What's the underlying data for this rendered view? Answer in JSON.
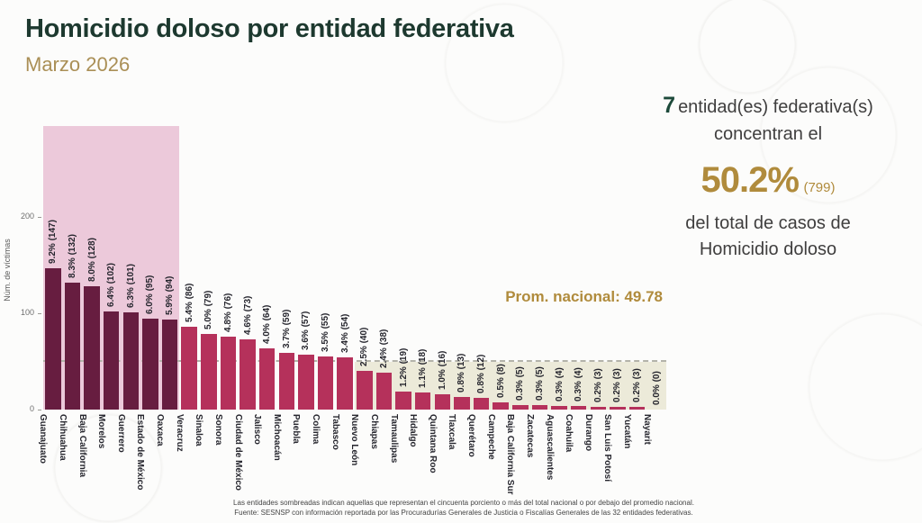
{
  "header": {
    "title": "Homicidio doloso por entidad federativa",
    "subtitle": "Marzo 2026"
  },
  "summary": {
    "count": "7",
    "count_suffix": "entidad(es) federativa(s)",
    "line2": "concentran el",
    "percent": "50.2%",
    "percent_count": "(799)",
    "line4": "del total de casos de",
    "line5": "Homicidio doloso"
  },
  "colors": {
    "bar_dark": "#671d40",
    "bar_light": "#b5315b",
    "region_pink": "#ecc9da",
    "region_beige": "#ecead9",
    "avg_line": "#b3b3aa",
    "accent_green": "#1d4a3a",
    "accent_gold": "#b08b3c",
    "title_green": "#1d392f"
  },
  "chart_data": {
    "type": "bar",
    "title": "Homicidio doloso por entidad federativa, Marzo 2026",
    "xlabel": "",
    "ylabel": "Núm. de víctimas",
    "yticks": [
      0,
      100,
      200
    ],
    "ylim": [
      0,
      295
    ],
    "grid": false,
    "legend": "none",
    "avg_label": "Prom. nacional: 49.78",
    "avg_value": 49.78,
    "highlight_top_n": 7,
    "categories": [
      "Guanajuato",
      "Chihuahua",
      "Baja California",
      "Morelos",
      "Guerrero",
      "Estado de México",
      "Oaxaca",
      "Veracruz",
      "Sinaloa",
      "Sonora",
      "Ciudad de México",
      "Jalisco",
      "Michoacán",
      "Puebla",
      "Colima",
      "Tabasco",
      "Nuevo León",
      "Chiapas",
      "Tamaulipas",
      "Hidalgo",
      "Quintana Roo",
      "Tlaxcala",
      "Querétaro",
      "Campeche",
      "Baja California Sur",
      "Zacatecas",
      "Aguascalientes",
      "Coahuila",
      "Durango",
      "San Luis Potosí",
      "Yucatán",
      "Nayarit"
    ],
    "values": [
      147,
      132,
      128,
      102,
      101,
      95,
      94,
      86,
      79,
      76,
      73,
      64,
      59,
      57,
      55,
      54,
      40,
      38,
      19,
      18,
      16,
      13,
      12,
      8,
      5,
      5,
      4,
      4,
      3,
      3,
      3,
      0
    ],
    "labels": [
      "9.2% (147)",
      "8.3% (132)",
      "8.0% (128)",
      "6.4% (102)",
      "6.3% (101)",
      "6.0% (95)",
      "5.9% (94)",
      "5.4% (86)",
      "5.0% (79)",
      "4.8% (76)",
      "4.6% (73)",
      "4.0% (64)",
      "3.7% (59)",
      "3.6% (57)",
      "3.5% (55)",
      "3.4% (54)",
      "2.5% (40)",
      "2.4% (38)",
      "1.2% (19)",
      "1.1% (18)",
      "1.0% (16)",
      "0.8% (13)",
      "0.8% (12)",
      "0.5% (8)",
      "0.3% (5)",
      "0.3% (5)",
      "0.3% (4)",
      "0.3% (4)",
      "0.2% (3)",
      "0.2% (3)",
      "0.2% (3)",
      "0.0% (0)"
    ]
  },
  "footnote": {
    "line1": "Las entidades sombreadas indican aquellas que representan el cincuenta porciento o más del total nacional o por debajo del promedio nacional.",
    "line2": "Fuente: SESNSP con información reportada por las Procuradurías Generales de Justicia o Fiscalías Generales de las 32 entidades federativas."
  }
}
